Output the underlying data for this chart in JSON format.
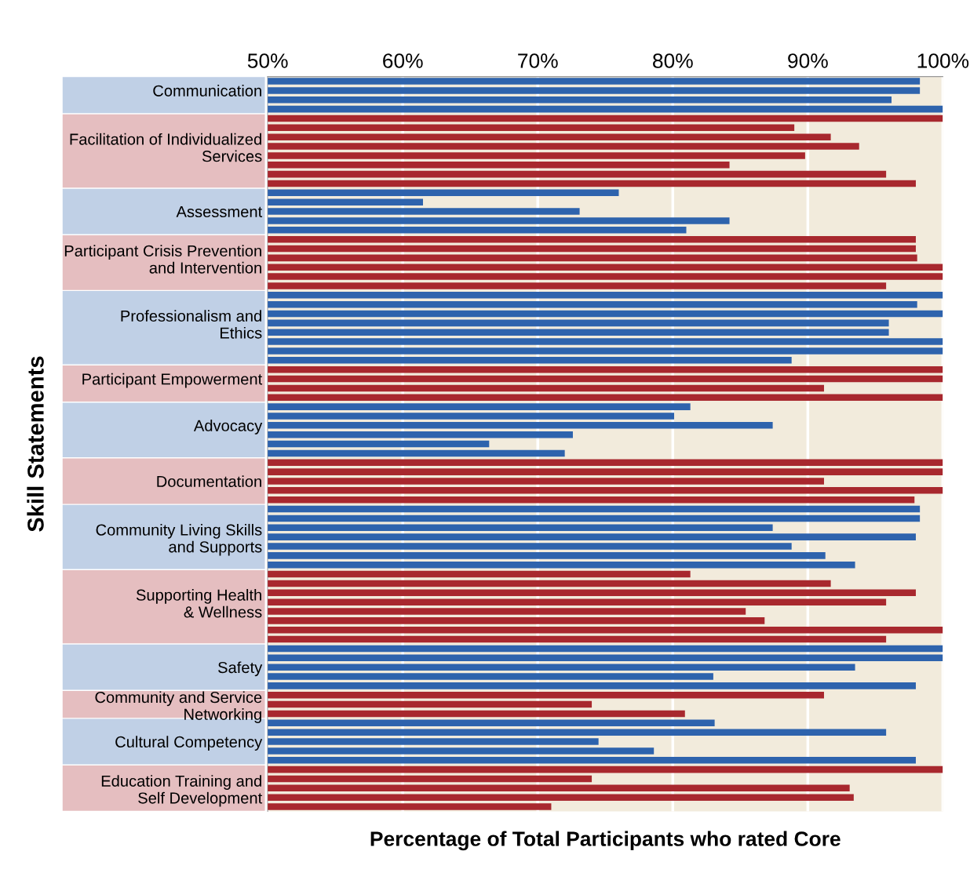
{
  "chart_data": {
    "type": "bar",
    "orientation": "horizontal",
    "xlabel": "Percentage of Total Participants who rated Core",
    "ylabel": "Skill Statements",
    "categories": [
      null,
      "Communication",
      null,
      null,
      null,
      null,
      null,
      "Facilitation of Individualized\nServices",
      null,
      null,
      null,
      null,
      null,
      null,
      "Assessment",
      null,
      null,
      null,
      null,
      "Participant Crisis Prevention\nand Intervention",
      null,
      null,
      null,
      null,
      null,
      null,
      "Professionalism and\nEthics",
      null,
      null,
      null,
      null,
      null,
      "Participant Empowerment",
      null,
      null,
      null,
      null,
      "Advocacy",
      null,
      null,
      null,
      null,
      null,
      "Documentation",
      null,
      null,
      null,
      null,
      null,
      "Community Living Skills\nand Supports",
      null,
      null,
      null,
      null,
      null,
      null,
      "Supporting Health\n& Wellness",
      null,
      null,
      null,
      null,
      null,
      null,
      "Safety",
      null,
      null,
      null,
      "Community and Service\nNetworking",
      null,
      null,
      null,
      "Cultural Competency",
      null,
      null,
      null,
      null,
      "Education Training and\nSelf Development",
      null,
      null
    ],
    "values": [
      98.3,
      98.3,
      96.2,
      100,
      100,
      89.0,
      91.7,
      93.8,
      89.8,
      84.2,
      95.8,
      98.0,
      76.0,
      61.5,
      73.1,
      84.2,
      81.0,
      98.0,
      98.0,
      98.1,
      100,
      100,
      95.8,
      100,
      98.1,
      100,
      96.0,
      96.0,
      100,
      100,
      88.8,
      100,
      100,
      91.2,
      100,
      81.3,
      80.1,
      87.4,
      72.6,
      66.4,
      72.0,
      100,
      100,
      91.2,
      100,
      97.9,
      98.3,
      98.3,
      87.4,
      98.0,
      88.8,
      91.3,
      93.5,
      81.3,
      91.7,
      98.0,
      95.8,
      85.4,
      86.8,
      100,
      95.8,
      100,
      100,
      93.5,
      83.0,
      98.0,
      91.2,
      74.0,
      80.9,
      83.1,
      95.8,
      74.5,
      78.6,
      98.0,
      100,
      74.0,
      93.1,
      93.4,
      71.0
    ],
    "colors": [
      "#2e63ad",
      "#2e63ad",
      "#2e63ad",
      "#2e63ad",
      "#a8282e",
      "#a8282e",
      "#a8282e",
      "#a8282e",
      "#a8282e",
      "#a8282e",
      "#a8282e",
      "#a8282e",
      "#2e63ad",
      "#2e63ad",
      "#2e63ad",
      "#2e63ad",
      "#2e63ad",
      "#a8282e",
      "#a8282e",
      "#a8282e",
      "#a8282e",
      "#a8282e",
      "#a8282e",
      "#2e63ad",
      "#2e63ad",
      "#2e63ad",
      "#2e63ad",
      "#2e63ad",
      "#2e63ad",
      "#2e63ad",
      "#2e63ad",
      "#a8282e",
      "#a8282e",
      "#a8282e",
      "#a8282e",
      "#2e63ad",
      "#2e63ad",
      "#2e63ad",
      "#2e63ad",
      "#2e63ad",
      "#2e63ad",
      "#a8282e",
      "#a8282e",
      "#a8282e",
      "#a8282e",
      "#a8282e",
      "#2e63ad",
      "#2e63ad",
      "#2e63ad",
      "#2e63ad",
      "#2e63ad",
      "#2e63ad",
      "#2e63ad",
      "#a8282e",
      "#a8282e",
      "#a8282e",
      "#a8282e",
      "#a8282e",
      "#a8282e",
      "#a8282e",
      "#a8282e",
      "#2e63ad",
      "#2e63ad",
      "#2e63ad",
      "#2e63ad",
      "#2e63ad",
      "#a8282e",
      "#a8282e",
      "#a8282e",
      "#2e63ad",
      "#2e63ad",
      "#2e63ad",
      "#2e63ad",
      "#2e63ad",
      "#a8282e",
      "#a8282e",
      "#a8282e",
      "#a8282e",
      "#a8282e"
    ],
    "xlim": [
      50,
      100
    ],
    "xticks": [
      {
        "value": 50,
        "label": "50%"
      },
      {
        "value": 60,
        "label": "60%"
      },
      {
        "value": 70,
        "label": "70%"
      },
      {
        "value": 80,
        "label": "80%"
      },
      {
        "value": 90,
        "label": "90%"
      },
      {
        "value": 100,
        "label": "100%"
      }
    ],
    "grid": "x"
  }
}
